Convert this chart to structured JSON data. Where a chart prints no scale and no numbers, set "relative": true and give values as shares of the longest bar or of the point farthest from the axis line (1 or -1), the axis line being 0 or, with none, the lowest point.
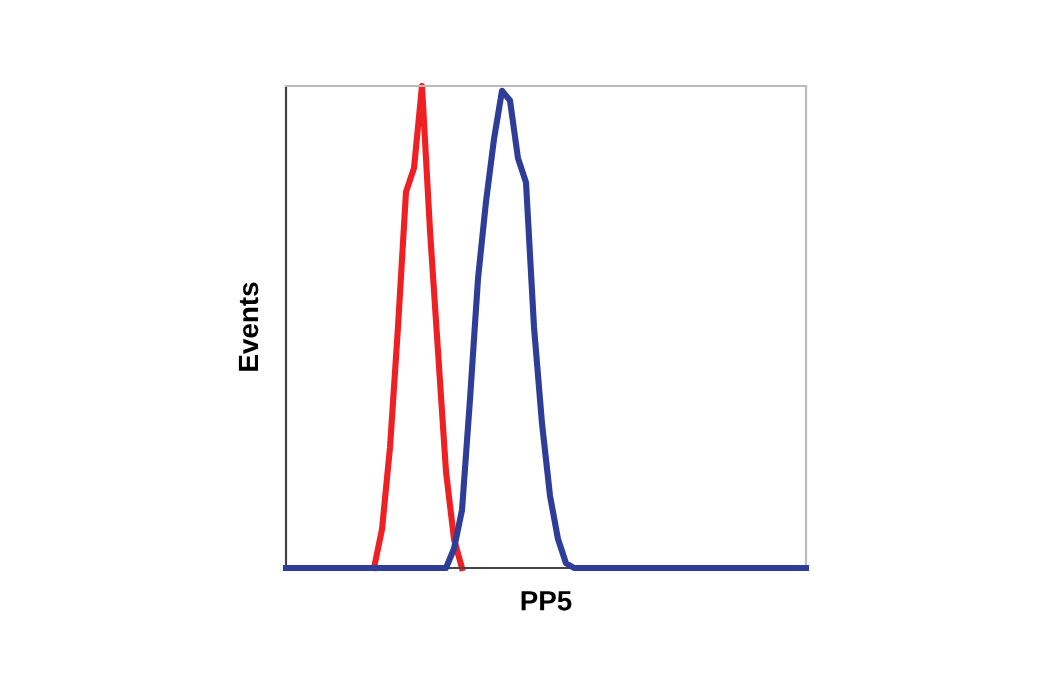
{
  "chart_data": {
    "type": "line",
    "xlabel": "PP5",
    "ylabel": "Events",
    "relative": true,
    "grid": false,
    "tick_labels": false,
    "line_style": "solid",
    "marker": "none",
    "categories": [
      null,
      null,
      null,
      null,
      null,
      null,
      null,
      null,
      null,
      null,
      null,
      null,
      null,
      null,
      null,
      null,
      null,
      null,
      null,
      null,
      null,
      null,
      null,
      null,
      null,
      null,
      null,
      null,
      null,
      null,
      null,
      null,
      null,
      null,
      null,
      null,
      null,
      null,
      null,
      null,
      null,
      null,
      null,
      null,
      null,
      null,
      null,
      null,
      null,
      null,
      null,
      null,
      null,
      null,
      null,
      null,
      null,
      null,
      null,
      null,
      null,
      null,
      null,
      null,
      null,
      null
    ],
    "series": [
      {
        "color": "#ee2024",
        "values": [
          null,
          null,
          null,
          null,
          null,
          null,
          null,
          null,
          null,
          null,
          null,
          0,
          0.08,
          0.25,
          0.5,
          0.78,
          0.83,
          1.0,
          0.7,
          0.45,
          0.2,
          0.06,
          0,
          null,
          null,
          null,
          null,
          null,
          null,
          null,
          null,
          null,
          null,
          null,
          null,
          null,
          null,
          null,
          null,
          null,
          null,
          null,
          null,
          null,
          null,
          null,
          null,
          null,
          null,
          null,
          null,
          null,
          null,
          null,
          null,
          null,
          null,
          null,
          null,
          null,
          null,
          null,
          null,
          null,
          null,
          null
        ]
      },
      {
        "color": "#2e3d98",
        "values": [
          0,
          0,
          0,
          0,
          0,
          0,
          0,
          0,
          0,
          0,
          0,
          0,
          0,
          0,
          0,
          0,
          0,
          0,
          0,
          0,
          0,
          0.04,
          0.12,
          0.35,
          0.6,
          0.76,
          0.89,
          0.99,
          0.97,
          0.85,
          0.8,
          0.5,
          0.3,
          0.15,
          0.06,
          0.01,
          0,
          0,
          0,
          0,
          0,
          0,
          0,
          0,
          0,
          0,
          0,
          0,
          0,
          0,
          0,
          0,
          0,
          0,
          0,
          0,
          0,
          0,
          0,
          0,
          0,
          0,
          0,
          0,
          0,
          0
        ]
      }
    ]
  }
}
